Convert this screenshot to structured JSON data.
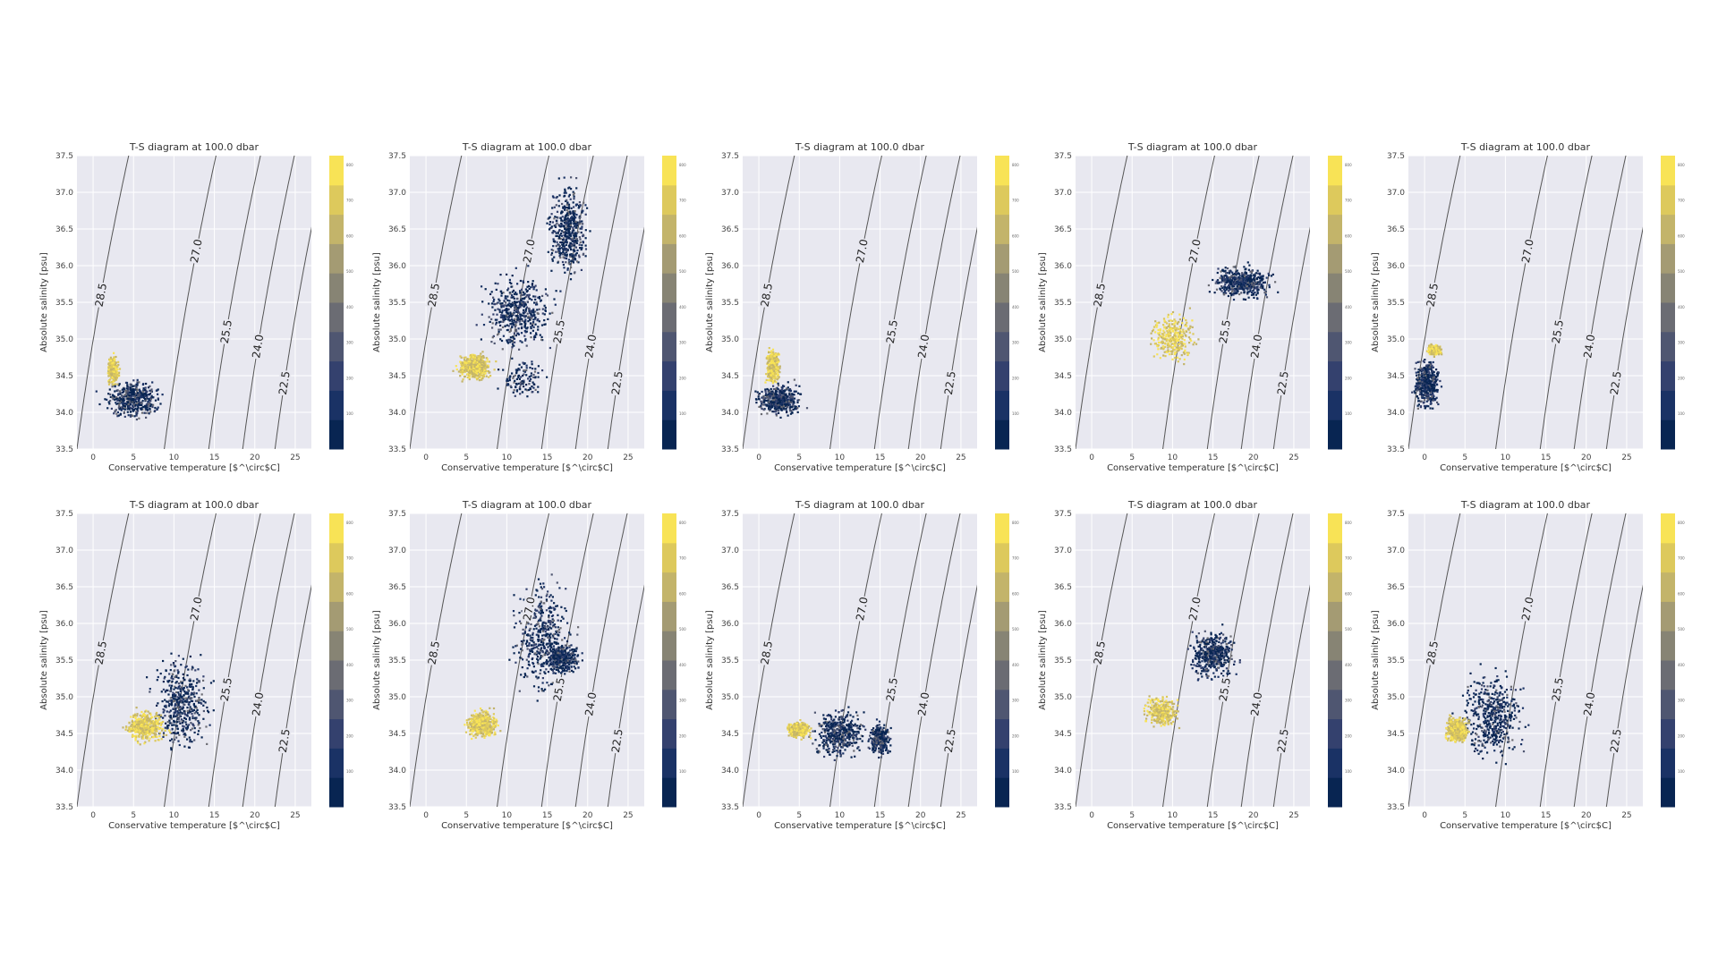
{
  "chart_data": [
    {
      "type": "scatter",
      "title": "T-S diagram at 100.0 dbar",
      "xlabel": "Conservative temperature [$^\\circ$C]",
      "ylabel": "Absolute salinity [psu]",
      "xlim": [
        -2,
        27
      ],
      "ylim": [
        33.5,
        37.5
      ],
      "x_ticks": [
        "0",
        "5",
        "10",
        "15",
        "20",
        "25"
      ],
      "y_ticks": [
        "33.5",
        "34.0",
        "34.5",
        "35.0",
        "35.5",
        "36.0",
        "36.5",
        "37.0",
        "37.5"
      ],
      "contour_labels": [
        "28.5",
        "27.0",
        "25.5",
        "24.0",
        "22.5"
      ],
      "colorbar_ticks": [
        "100",
        "200",
        "300",
        "400",
        "500",
        "600",
        "700",
        "800"
      ],
      "grid": true,
      "clusters": [
        {
          "x": [
            0,
            10
          ],
          "y": [
            33.8,
            34.55
          ],
          "density": "high",
          "depth_mix": "deep"
        },
        {
          "x": [
            1.5,
            3.5
          ],
          "y": [
            34.3,
            34.85
          ],
          "density": "medium",
          "depth_mix": "shallow"
        }
      ]
    },
    {
      "type": "scatter",
      "title": "T-S diagram at 100.0 dbar",
      "xlabel": "Conservative temperature [$^\\circ$C]",
      "ylabel": "Absolute salinity [psu]",
      "xlim": [
        -2,
        27
      ],
      "ylim": [
        33.5,
        37.5
      ],
      "x_ticks": [
        "0",
        "5",
        "10",
        "15",
        "20",
        "25"
      ],
      "y_ticks": [
        "33.5",
        "34.0",
        "34.5",
        "35.0",
        "35.5",
        "36.0",
        "36.5",
        "37.0",
        "37.5"
      ],
      "contour_labels": [
        "28.5",
        "27.0",
        "25.5",
        "24.0",
        "22.5"
      ],
      "colorbar_ticks": [
        "100",
        "200",
        "300",
        "400",
        "500",
        "600",
        "700",
        "800"
      ],
      "grid": true,
      "clusters": [
        {
          "x": [
            5,
            18
          ],
          "y": [
            34.6,
            36.1
          ],
          "density": "high",
          "depth_mix": "deep"
        },
        {
          "x": [
            14,
            21
          ],
          "y": [
            35.6,
            37.4
          ],
          "density": "high",
          "depth_mix": "deep"
        },
        {
          "x": [
            3,
            9
          ],
          "y": [
            34.35,
            34.9
          ],
          "density": "high",
          "depth_mix": "shallow"
        },
        {
          "x": [
            8,
            16
          ],
          "y": [
            34.0,
            34.9
          ],
          "density": "low",
          "depth_mix": "deep"
        }
      ]
    },
    {
      "type": "scatter",
      "title": "T-S diagram at 100.0 dbar",
      "xlabel": "Conservative temperature [$^\\circ$C]",
      "ylabel": "Absolute salinity [psu]",
      "xlim": [
        -2,
        27
      ],
      "ylim": [
        33.5,
        37.5
      ],
      "x_ticks": [
        "0",
        "5",
        "10",
        "15",
        "20",
        "25"
      ],
      "y_ticks": [
        "33.5",
        "34.0",
        "34.5",
        "35.0",
        "35.5",
        "36.0",
        "36.5",
        "37.0",
        "37.5"
      ],
      "contour_labels": [
        "28.5",
        "27.0",
        "25.5",
        "24.0",
        "22.5"
      ],
      "colorbar_ticks": [
        "100",
        "200",
        "300",
        "400",
        "500",
        "600",
        "700",
        "800"
      ],
      "grid": true,
      "clusters": [
        {
          "x": [
            -1.5,
            6.5
          ],
          "y": [
            33.85,
            34.5
          ],
          "density": "high",
          "depth_mix": "deep"
        },
        {
          "x": [
            0.5,
            3
          ],
          "y": [
            34.3,
            35.0
          ],
          "density": "medium",
          "depth_mix": "shallow"
        }
      ]
    },
    {
      "type": "scatter",
      "title": "T-S diagram at 100.0 dbar",
      "xlabel": "Conservative temperature [$^\\circ$C]",
      "ylabel": "Absolute salinity [psu]",
      "xlim": [
        -2,
        27
      ],
      "ylim": [
        33.5,
        37.5
      ],
      "x_ticks": [
        "0",
        "5",
        "10",
        "15",
        "20",
        "25"
      ],
      "y_ticks": [
        "33.5",
        "34.0",
        "34.5",
        "35.0",
        "35.5",
        "36.0",
        "36.5",
        "37.0",
        "37.5"
      ],
      "contour_labels": [
        "28.5",
        "27.0",
        "25.5",
        "24.0",
        "22.5"
      ],
      "colorbar_ticks": [
        "100",
        "200",
        "300",
        "400",
        "500",
        "600",
        "700",
        "800"
      ],
      "grid": true,
      "clusters": [
        {
          "x": [
            13,
            24
          ],
          "y": [
            35.45,
            36.1
          ],
          "density": "high",
          "depth_mix": "deep"
        },
        {
          "x": [
            6,
            14
          ],
          "y": [
            34.55,
            35.5
          ],
          "density": "medium",
          "depth_mix": "shallow"
        }
      ]
    },
    {
      "type": "scatter",
      "title": "T-S diagram at 100.0 dbar",
      "xlabel": "Conservative temperature [$^\\circ$C]",
      "ylabel": "Absolute salinity [psu]",
      "xlim": [
        -2,
        27
      ],
      "ylim": [
        33.5,
        37.5
      ],
      "x_ticks": [
        "0",
        "5",
        "10",
        "15",
        "20",
        "25"
      ],
      "y_ticks": [
        "33.5",
        "34.0",
        "34.5",
        "35.0",
        "35.5",
        "36.0",
        "36.5",
        "37.0",
        "37.5"
      ],
      "contour_labels": [
        "28.5",
        "27.0",
        "25.5",
        "24.0",
        "22.5"
      ],
      "colorbar_ticks": [
        "100",
        "200",
        "300",
        "400",
        "500",
        "600",
        "700",
        "800"
      ],
      "grid": true,
      "clusters": [
        {
          "x": [
            -2,
            2.5
          ],
          "y": [
            33.9,
            34.9
          ],
          "density": "high",
          "depth_mix": "deep"
        },
        {
          "x": [
            0,
            2.5
          ],
          "y": [
            34.75,
            34.95
          ],
          "density": "medium",
          "depth_mix": "shallow"
        }
      ]
    },
    {
      "type": "scatter",
      "title": "T-S diagram at 100.0 dbar",
      "xlabel": "Conservative temperature [$^\\circ$C]",
      "ylabel": "Absolute salinity [psu]",
      "xlim": [
        -2,
        27
      ],
      "ylim": [
        33.5,
        37.5
      ],
      "x_ticks": [
        "0",
        "5",
        "10",
        "15",
        "20",
        "25"
      ],
      "y_ticks": [
        "33.5",
        "34.0",
        "34.5",
        "35.0",
        "35.5",
        "36.0",
        "36.5",
        "37.0",
        "37.5"
      ],
      "contour_labels": [
        "28.5",
        "27.0",
        "25.5",
        "24.0",
        "22.5"
      ],
      "colorbar_ticks": [
        "100",
        "200",
        "300",
        "400",
        "500",
        "600",
        "700",
        "800"
      ],
      "grid": true,
      "clusters": [
        {
          "x": [
            6,
            16
          ],
          "y": [
            34.0,
            35.8
          ],
          "density": "high",
          "depth_mix": "deep"
        },
        {
          "x": [
            3,
            10
          ],
          "y": [
            34.3,
            34.9
          ],
          "density": "high",
          "depth_mix": "shallow"
        }
      ]
    },
    {
      "type": "scatter",
      "title": "T-S diagram at 100.0 dbar",
      "xlabel": "Conservative temperature [$^\\circ$C]",
      "ylabel": "Absolute salinity [psu]",
      "xlim": [
        -2,
        27
      ],
      "ylim": [
        33.5,
        37.5
      ],
      "x_ticks": [
        "0",
        "5",
        "10",
        "15",
        "20",
        "25"
      ],
      "y_ticks": [
        "33.5",
        "34.0",
        "34.5",
        "35.0",
        "35.5",
        "36.0",
        "36.5",
        "37.0",
        "37.5"
      ],
      "contour_labels": [
        "28.5",
        "27.0",
        "25.5",
        "24.0",
        "22.5"
      ],
      "colorbar_ticks": [
        "100",
        "200",
        "300",
        "400",
        "500",
        "600",
        "700",
        "800"
      ],
      "grid": true,
      "clusters": [
        {
          "x": [
            9,
            20
          ],
          "y": [
            34.7,
            36.9
          ],
          "density": "high",
          "depth_mix": "deep"
        },
        {
          "x": [
            14,
            20
          ],
          "y": [
            35.25,
            35.8
          ],
          "density": "medium",
          "depth_mix": "deep"
        },
        {
          "x": [
            4,
            10
          ],
          "y": [
            34.35,
            34.9
          ],
          "density": "high",
          "depth_mix": "shallow"
        }
      ]
    },
    {
      "type": "scatter",
      "title": "T-S diagram at 100.0 dbar",
      "xlabel": "Conservative temperature [$^\\circ$C]",
      "ylabel": "Absolute salinity [psu]",
      "xlim": [
        -2,
        27
      ],
      "ylim": [
        33.5,
        37.5
      ],
      "x_ticks": [
        "0",
        "5",
        "10",
        "15",
        "20",
        "25"
      ],
      "y_ticks": [
        "33.5",
        "34.0",
        "34.5",
        "35.0",
        "35.5",
        "36.0",
        "36.5",
        "37.0",
        "37.5"
      ],
      "contour_labels": [
        "28.5",
        "27.0",
        "25.5",
        "24.0",
        "22.5"
      ],
      "colorbar_ticks": [
        "100",
        "200",
        "300",
        "400",
        "500",
        "600",
        "700",
        "800"
      ],
      "grid": true,
      "clusters": [
        {
          "x": [
            5,
            15
          ],
          "y": [
            34.05,
            34.95
          ],
          "density": "high",
          "depth_mix": "deep"
        },
        {
          "x": [
            3,
            7
          ],
          "y": [
            34.4,
            34.7
          ],
          "density": "high",
          "depth_mix": "shallow"
        },
        {
          "x": [
            13,
            17
          ],
          "y": [
            34.1,
            34.75
          ],
          "density": "medium",
          "depth_mix": "deep"
        }
      ]
    },
    {
      "type": "scatter",
      "title": "T-S diagram at 100.0 dbar",
      "xlabel": "Conservative temperature [$^\\circ$C]",
      "ylabel": "Absolute salinity [psu]",
      "xlim": [
        -2,
        27
      ],
      "ylim": [
        33.5,
        37.5
      ],
      "x_ticks": [
        "0",
        "5",
        "10",
        "15",
        "20",
        "25"
      ],
      "y_ticks": [
        "33.5",
        "34.0",
        "34.5",
        "35.0",
        "35.5",
        "36.0",
        "36.5",
        "37.0",
        "37.5"
      ],
      "contour_labels": [
        "28.5",
        "27.0",
        "25.5",
        "24.0",
        "22.5"
      ],
      "colorbar_ticks": [
        "100",
        "200",
        "300",
        "400",
        "500",
        "600",
        "700",
        "800"
      ],
      "grid": true,
      "clusters": [
        {
          "x": [
            11,
            19
          ],
          "y": [
            35.1,
            36.05
          ],
          "density": "high",
          "depth_mix": "deep"
        },
        {
          "x": [
            5.5,
            12
          ],
          "y": [
            34.5,
            35.1
          ],
          "density": "medium",
          "depth_mix": "shallow"
        }
      ]
    },
    {
      "type": "scatter",
      "title": "T-S diagram at 100.0 dbar",
      "xlabel": "Conservative temperature [$^\\circ$C]",
      "ylabel": "Absolute salinity [psu]",
      "xlim": [
        -2,
        27
      ],
      "ylim": [
        33.5,
        37.5
      ],
      "x_ticks": [
        "0",
        "5",
        "10",
        "15",
        "20",
        "25"
      ],
      "y_ticks": [
        "33.5",
        "34.0",
        "34.5",
        "35.0",
        "35.5",
        "36.0",
        "36.5",
        "37.0",
        "37.5"
      ],
      "contour_labels": [
        "28.5",
        "27.0",
        "25.5",
        "24.0",
        "22.5"
      ],
      "colorbar_ticks": [
        "100",
        "200",
        "300",
        "400",
        "500",
        "600",
        "700",
        "800"
      ],
      "grid": true,
      "clusters": [
        {
          "x": [
            3,
            14
          ],
          "y": [
            33.85,
            35.6
          ],
          "density": "high",
          "depth_mix": "deep"
        },
        {
          "x": [
            2,
            6
          ],
          "y": [
            34.3,
            34.8
          ],
          "density": "high",
          "depth_mix": "shallow"
        }
      ]
    }
  ],
  "colors": {
    "plot_background": "#e8e8f0",
    "grid": "#ffffff",
    "contour": "#555555",
    "colormap": [
      "#082552",
      "#1a3265",
      "#34416e",
      "#4f5671",
      "#6b6c73",
      "#878474",
      "#a49b73",
      "#c3b46a",
      "#ddc95c",
      "#f8e356"
    ]
  },
  "contours": [
    {
      "label": "28.5",
      "offset": -2
    },
    {
      "label": "27.0",
      "offset": 8.8
    },
    {
      "label": "25.5",
      "offset": 14.3
    },
    {
      "label": "24.0",
      "offset": 18.5
    },
    {
      "label": "22.5",
      "offset": 22.5
    }
  ]
}
